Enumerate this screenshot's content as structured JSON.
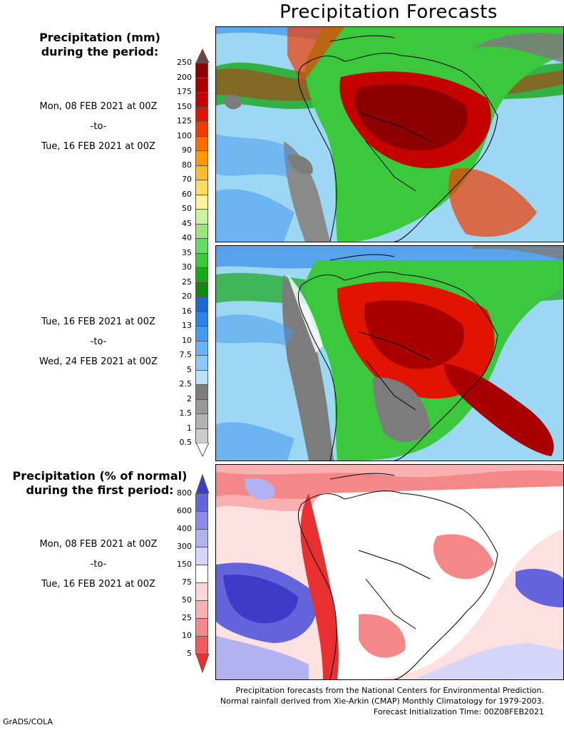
{
  "title": "Precipitation Forecasts",
  "amount_heading": "Precipitation (mm)\nduring the period:",
  "period1": {
    "start": "Mon, 08 FEB 2021 at 00Z",
    "sep": "-to-",
    "end": "Tue, 16 FEB 2021 at 00Z"
  },
  "period2": {
    "start": "Tue, 16 FEB 2021 at 00Z",
    "sep": "-to-",
    "end": "Wed, 24 FEB 2021 at 00Z"
  },
  "pct_heading": "Precipitation (% of normal)\nduring the first period:",
  "period3": {
    "start": "Mon, 08 FEB 2021 at 00Z",
    "sep": "-to-",
    "end": "Tue, 16 FEB 2021 at 00Z"
  },
  "mm_scale": {
    "ticks": [
      "250",
      "200",
      "175",
      "150",
      "125",
      "100",
      "90",
      "80",
      "70",
      "60",
      "50",
      "45",
      "40",
      "35",
      "30",
      "25",
      "20",
      "16",
      "13",
      "10",
      "7.5",
      "5",
      "2.5",
      "2",
      "1.5",
      "1",
      "0.5"
    ],
    "colors": [
      "#6e4444",
      "#8c0000",
      "#a80000",
      "#c40000",
      "#e01400",
      "#f03c00",
      "#fa6e00",
      "#fc9a00",
      "#fcbc2c",
      "#fcdc5e",
      "#fcf49a",
      "#c8f2a0",
      "#9ae67e",
      "#6ad866",
      "#3cc83c",
      "#18a818",
      "#0c8a0c",
      "#1a6ad0",
      "#2c82e6",
      "#4698f0",
      "#68b2f8",
      "#8cc8fc",
      "#b6e2fc",
      "#7c7c7c",
      "#989898",
      "#b2b2b2",
      "#cccccc",
      "#ffffff"
    ]
  },
  "pct_scale": {
    "ticks": [
      "800",
      "600",
      "400",
      "300",
      "150",
      "75",
      "50",
      "25",
      "10",
      "5"
    ],
    "colors": [
      "#3c3cc8",
      "#6464dc",
      "#8c8ce6",
      "#b2b2f0",
      "#d6d6fa",
      "#ffffff",
      "#fcd6d6",
      "#f8b0b0",
      "#f48888",
      "#f05c5c",
      "#e83030"
    ]
  },
  "footer": [
    "Precipitation forecasts from the National Centers for Environmental Prediction.",
    "Normal rainfall derived from Xie-Arkin (CMAP) Monthly Climatology for 1979-2003.",
    "Forecast Initialization Time: 00Z08FEB2021"
  ],
  "credit": "GrADS/COLA"
}
